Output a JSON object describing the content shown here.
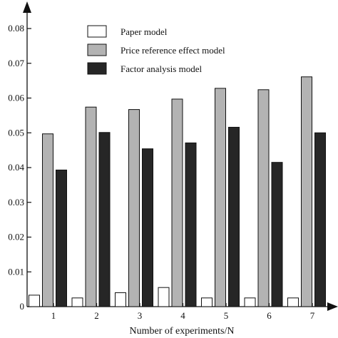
{
  "chart_data": {
    "type": "bar",
    "xlabel": "Number of experiments/N",
    "ylabel": "",
    "title": "",
    "categories": [
      "1",
      "2",
      "3",
      "4",
      "5",
      "6",
      "7"
    ],
    "ylim": [
      0,
      0.08
    ],
    "yticks": [
      "0",
      "0.01",
      "0.02",
      "0.03",
      "0.04",
      "0.05",
      "0.06",
      "0.07",
      "0.08"
    ],
    "series": [
      {
        "name": "Paper model",
        "color": "#ffffff",
        "values": [
          0.0033,
          0.0025,
          0.004,
          0.0055,
          0.0025,
          0.0025,
          0.0025
        ]
      },
      {
        "name": "Price reference effect model",
        "color": "#b3b3b3",
        "values": [
          0.0497,
          0.0574,
          0.0567,
          0.0597,
          0.0628,
          0.0624,
          0.0661
        ]
      },
      {
        "name": "Factor analysis model",
        "color": "#262626",
        "values": [
          0.0393,
          0.0501,
          0.0454,
          0.0471,
          0.0516,
          0.0415,
          0.05
        ]
      }
    ],
    "grid": false,
    "legend_position": "top-center"
  }
}
